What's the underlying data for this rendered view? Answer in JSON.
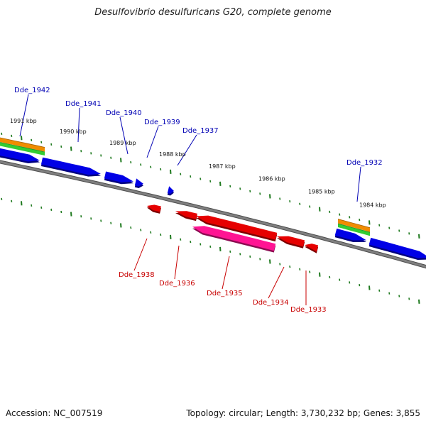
{
  "title": "Desulfovibrio desulfuricans G20, complete genome",
  "footer": {
    "accession_label": "Accession:",
    "accession": "NC_007519",
    "topology_label": "Topology:",
    "topology": "circular",
    "length_label": "Length:",
    "length": "3,730,232 bp",
    "genes_label": "Genes:",
    "genes": "3,855"
  },
  "colors": {
    "backbone": "#7f7f7f",
    "tick": "#1f7a1f",
    "forward_gene": "#0000e6",
    "reverse_gene": "#e60000",
    "reverse_gene_alt": "#ff1493",
    "feature_orange": "#f08c00",
    "feature_green": "#33cc33",
    "forward_label": "#0000b4",
    "reverse_label": "#c80000"
  },
  "kbp_labels": [
    "1991 kbp",
    "1990 kbp",
    "1989 kbp",
    "1988 kbp",
    "1987 kbp",
    "1986 kbp",
    "1985 kbp",
    "1984 kbp"
  ],
  "forward_genes": [
    {
      "label": "Dde_1942",
      "show_label": true
    },
    {
      "label": "Dde_1941",
      "show_label": true
    },
    {
      "label": "Dde_1940",
      "show_label": true
    },
    {
      "label": "Dde_1939",
      "show_label": true
    },
    {
      "label": "Dde_1937",
      "show_label": true
    },
    {
      "label": "Dde_1932",
      "show_label": true
    },
    {
      "label": "",
      "show_label": false
    }
  ],
  "reverse_genes": [
    {
      "label": "Dde_1938"
    },
    {
      "label": "Dde_1936"
    },
    {
      "label": "Dde_1935"
    },
    {
      "label": "Dde_1934"
    },
    {
      "label": "Dde_1933"
    }
  ]
}
